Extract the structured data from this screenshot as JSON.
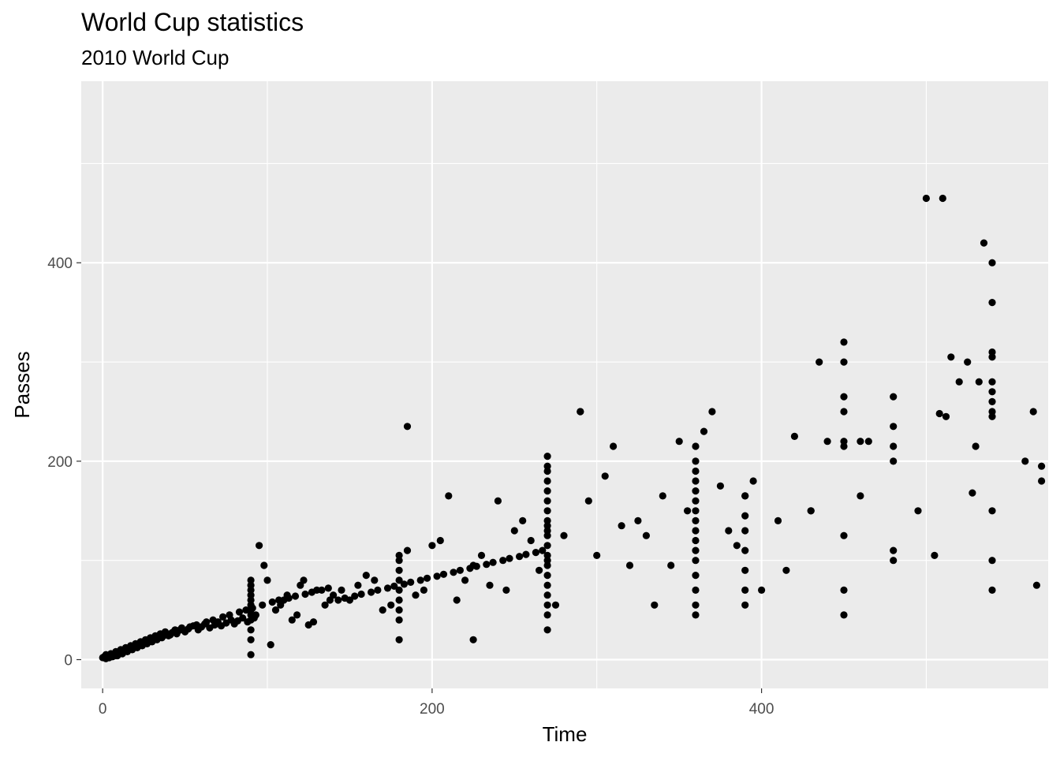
{
  "chart_data": {
    "type": "scatter",
    "title": "World Cup statistics",
    "subtitle": "2010 World Cup",
    "xlabel": "Time",
    "ylabel": "Passes",
    "xlim": [
      -13,
      574
    ],
    "ylim": [
      -29,
      583
    ],
    "x_ticks": [
      0,
      200,
      400
    ],
    "y_ticks": [
      0,
      200,
      400
    ],
    "x_minor": [
      100,
      300,
      500
    ],
    "y_minor": [
      100,
      300,
      500
    ],
    "grid": true,
    "panel_color": "#ebebeb",
    "point_color": "#000000",
    "x": [
      0,
      1,
      2,
      3,
      4,
      5,
      6,
      7,
      8,
      9,
      10,
      11,
      12,
      13,
      14,
      15,
      16,
      17,
      18,
      19,
      20,
      21,
      22,
      23,
      24,
      25,
      26,
      27,
      28,
      29,
      30,
      31,
      32,
      33,
      34,
      35,
      36,
      37,
      38,
      40,
      42,
      44,
      45,
      46,
      48,
      50,
      52,
      55,
      58,
      60,
      62,
      65,
      68,
      70,
      72,
      75,
      78,
      80,
      82,
      85,
      88,
      90,
      90,
      90,
      90,
      90,
      90,
      90,
      90,
      90,
      90,
      90,
      90,
      92,
      93,
      95,
      98,
      100,
      102,
      105,
      108,
      110,
      112,
      115,
      118,
      120,
      122,
      125,
      128,
      130,
      135,
      138,
      140,
      145,
      150,
      155,
      160,
      165,
      170,
      175,
      180,
      180,
      180,
      180,
      180,
      180,
      180,
      180,
      180,
      185,
      190,
      195,
      200,
      205,
      210,
      215,
      220,
      225,
      230,
      235,
      240,
      245,
      250,
      255,
      260,
      265,
      270,
      270,
      270,
      270,
      270,
      270,
      270,
      270,
      270,
      270,
      270,
      270,
      270,
      270,
      270,
      270,
      270,
      270,
      270,
      270,
      270,
      275,
      280,
      290,
      295,
      300,
      305,
      310,
      315,
      320,
      325,
      330,
      335,
      340,
      345,
      350,
      355,
      360,
      360,
      360,
      360,
      360,
      360,
      360,
      360,
      360,
      360,
      360,
      360,
      360,
      360,
      360,
      360,
      365,
      370,
      375,
      380,
      385,
      390,
      390,
      390,
      390,
      390,
      390,
      390,
      390,
      395,
      400,
      410,
      415,
      420,
      430,
      435,
      440,
      450,
      450,
      450,
      450,
      450,
      450,
      450,
      450,
      450,
      460,
      465,
      480,
      480,
      480,
      480,
      480,
      480,
      495,
      500,
      505,
      508,
      510,
      512,
      515,
      520,
      525,
      528,
      530,
      532,
      535,
      540,
      540,
      540,
      540,
      540,
      540,
      540,
      540,
      540,
      540,
      540,
      540,
      560,
      565,
      567,
      570,
      570,
      2,
      4,
      6,
      8,
      10,
      13,
      16,
      19,
      22,
      25,
      28,
      31,
      34,
      37,
      41,
      43,
      47,
      53,
      57,
      63,
      67,
      73,
      77,
      83,
      87,
      91,
      97,
      103,
      107,
      113,
      117,
      123,
      127,
      133,
      137,
      143,
      147,
      153,
      157,
      163,
      167,
      173,
      177,
      183,
      187,
      193,
      197,
      203,
      207,
      213,
      217,
      223,
      227,
      233,
      237,
      243,
      247,
      253,
      257,
      263,
      267,
      185,
      225,
      290,
      460,
      430
    ],
    "y": [
      2,
      3,
      5,
      2,
      4,
      6,
      3,
      5,
      8,
      4,
      7,
      10,
      6,
      9,
      12,
      8,
      11,
      14,
      10,
      13,
      16,
      12,
      15,
      18,
      14,
      17,
      20,
      16,
      19,
      22,
      18,
      21,
      24,
      20,
      23,
      26,
      22,
      25,
      28,
      24,
      27,
      30,
      26,
      29,
      32,
      28,
      31,
      34,
      30,
      33,
      36,
      32,
      35,
      38,
      34,
      37,
      40,
      36,
      39,
      42,
      38,
      5,
      20,
      30,
      40,
      45,
      50,
      55,
      60,
      65,
      70,
      75,
      80,
      42,
      45,
      115,
      95,
      80,
      15,
      50,
      55,
      60,
      65,
      40,
      45,
      75,
      80,
      35,
      38,
      70,
      55,
      60,
      65,
      70,
      60,
      75,
      85,
      80,
      50,
      55,
      20,
      40,
      50,
      60,
      70,
      80,
      90,
      100,
      105,
      110,
      65,
      70,
      115,
      120,
      165,
      60,
      80,
      95,
      105,
      75,
      160,
      70,
      130,
      140,
      120,
      90,
      100,
      30,
      45,
      55,
      65,
      75,
      85,
      95,
      105,
      115,
      125,
      130,
      135,
      140,
      150,
      160,
      170,
      180,
      190,
      195,
      205,
      55,
      125,
      250,
      160,
      105,
      185,
      215,
      135,
      95,
      140,
      125,
      55,
      165,
      95,
      220,
      150,
      45,
      55,
      70,
      85,
      100,
      110,
      120,
      130,
      140,
      150,
      160,
      170,
      180,
      190,
      200,
      215,
      230,
      250,
      175,
      130,
      115,
      165,
      55,
      70,
      90,
      110,
      130,
      145,
      165,
      180,
      70,
      140,
      90,
      225,
      150,
      300,
      220,
      45,
      70,
      125,
      215,
      220,
      250,
      265,
      300,
      320,
      165,
      220,
      100,
      110,
      200,
      215,
      235,
      265,
      150,
      465,
      105,
      248,
      465,
      245,
      305,
      280,
      300,
      168,
      215,
      280,
      420,
      250,
      70,
      100,
      150,
      245,
      260,
      270,
      280,
      305,
      310,
      360,
      400,
      200,
      250,
      75,
      180,
      195,
      1,
      2,
      3,
      4,
      6,
      8,
      10,
      12,
      14,
      16,
      18,
      20,
      22,
      24,
      25,
      28,
      30,
      33,
      35,
      38,
      40,
      43,
      45,
      48,
      50,
      52,
      55,
      58,
      60,
      62,
      64,
      66,
      68,
      70,
      72,
      60,
      62,
      64,
      66,
      68,
      70,
      72,
      74,
      76,
      78,
      80,
      82,
      84,
      86,
      88,
      90,
      92,
      94,
      96,
      98,
      100,
      102,
      104,
      106,
      108,
      110,
      235,
      20,
      250,
      220,
      150
    ]
  }
}
